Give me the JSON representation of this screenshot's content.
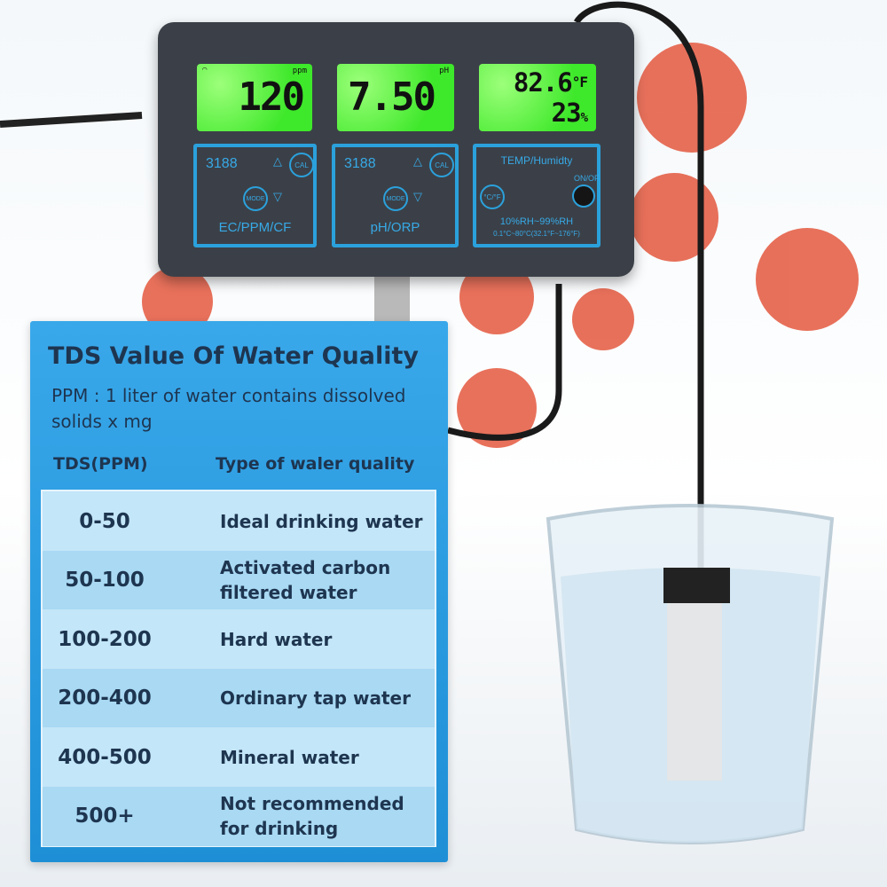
{
  "device": {
    "lcd1": {
      "value": "120",
      "unit": "ppm"
    },
    "lcd2": {
      "value": "7.50",
      "unit": "pH"
    },
    "lcd3": {
      "temp": "82.6",
      "temp_unit": "°F",
      "humidity": "23",
      "humidity_unit": "%"
    },
    "panel1": {
      "model": "3188",
      "cal": "CAL",
      "mode": "MODE",
      "label": "EC/PPM/CF"
    },
    "panel2": {
      "model": "3188",
      "cal": "CAL",
      "mode": "MODE",
      "label": "pH/ORP"
    },
    "panel3": {
      "title": "TEMP/Humidty",
      "unit_btn": "°C/°F",
      "power": "ON/OF",
      "range1": "10%RH~99%RH",
      "range2": "0.1°C~80°C(32.1°F~176°F)"
    }
  },
  "card": {
    "title": "TDS Value Of Water Quality",
    "subtitle": "PPM : 1 liter of water contains dissolved solids x mg",
    "col1": "TDS(PPM)",
    "col2": "Type of waler quality",
    "rows": [
      {
        "range": "0-50",
        "type": "Ideal drinking water"
      },
      {
        "range": "50-100",
        "type": "Activated carbon filtered water"
      },
      {
        "range": "100-200",
        "type": "Hard water"
      },
      {
        "range": "200-400",
        "type": "Ordinary tap water"
      },
      {
        "range": "400-500",
        "type": "Mineral water"
      },
      {
        "range": "500+",
        "type": "Not recommended for drinking"
      }
    ]
  },
  "colors": {
    "lcd": "#3ee82a",
    "panel_border": "#2ba1dc",
    "card": "#2a9be0",
    "row_light": "#c3e6f8",
    "row_dark": "#a9d9f3"
  }
}
